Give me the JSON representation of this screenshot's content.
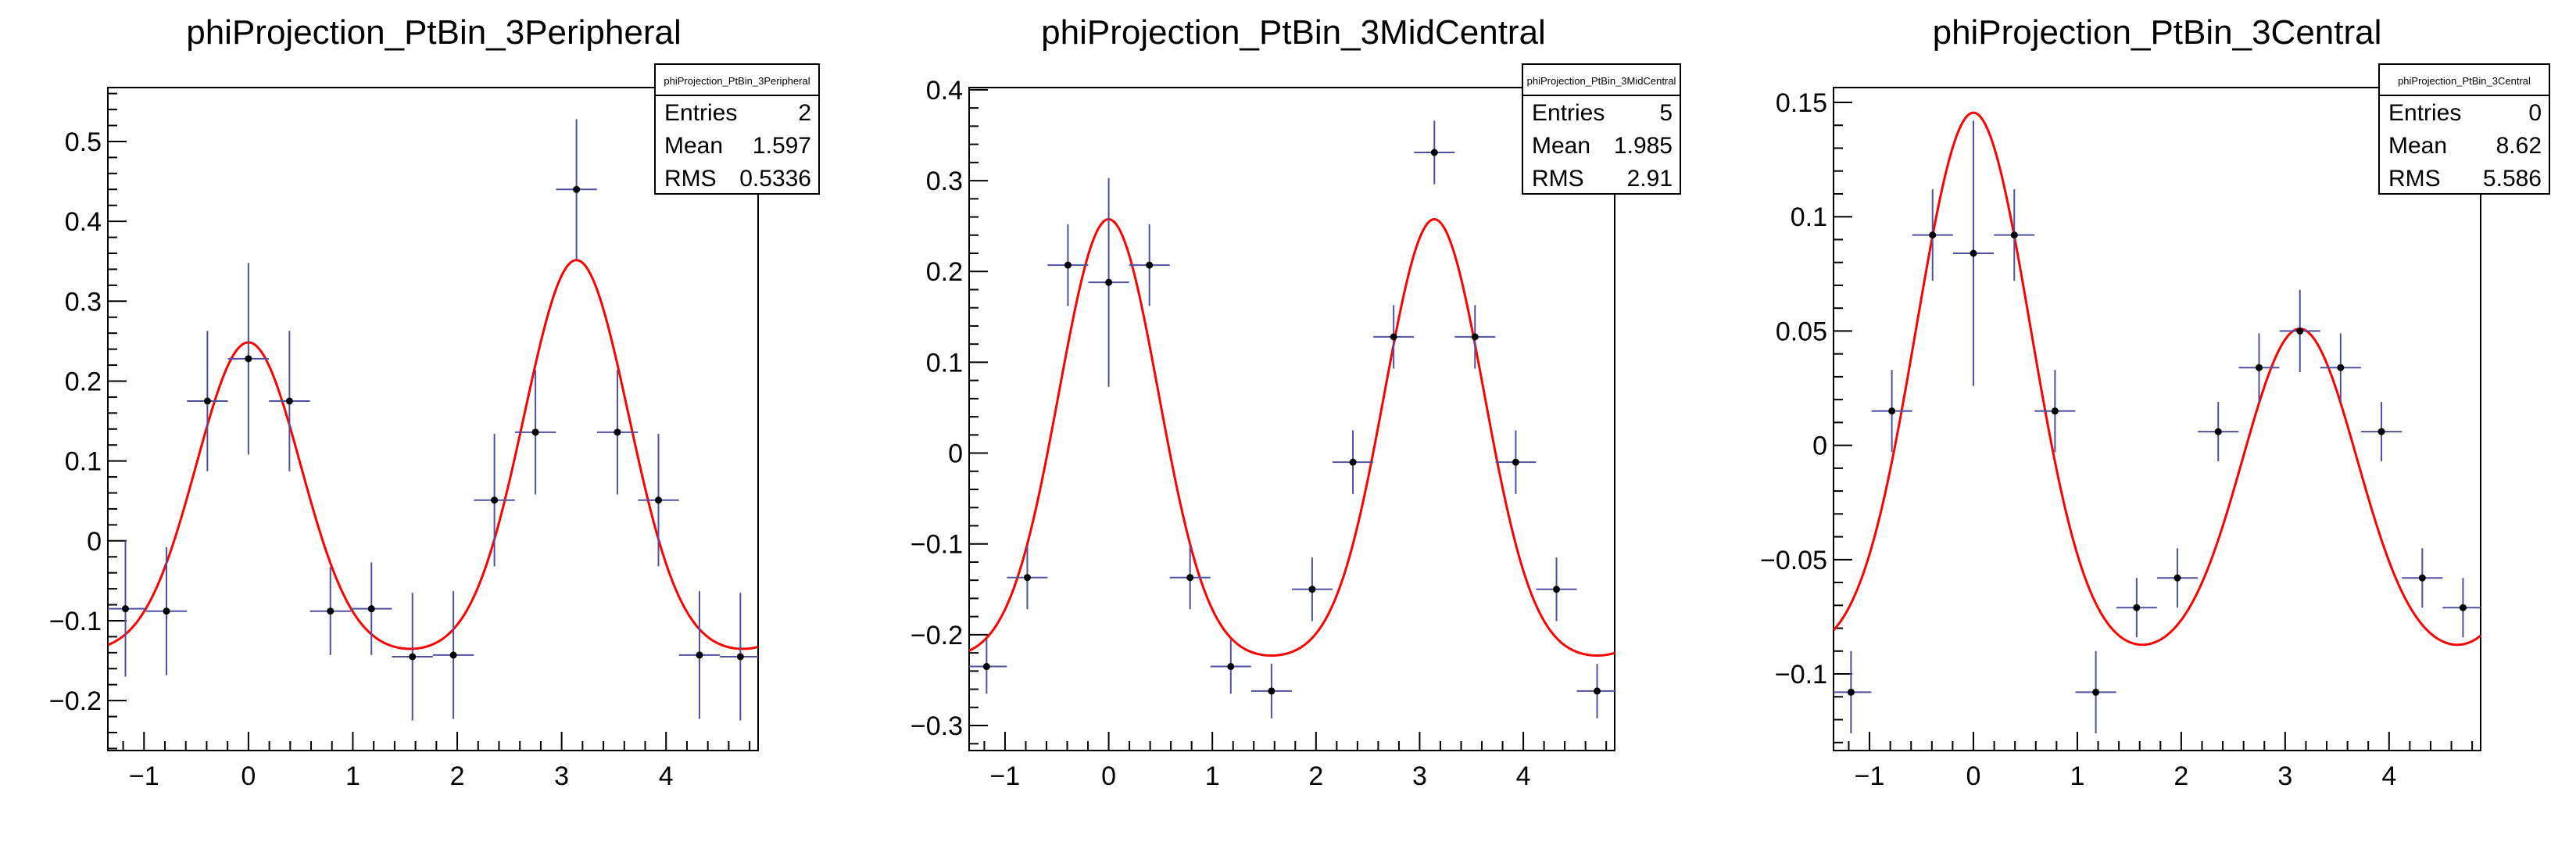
{
  "figure": {
    "colors": {
      "frame": "#000000",
      "fit": "#ff0000",
      "error_bar": "#5050a0",
      "marker": "#000000",
      "background": "#ffffff"
    }
  },
  "chart_data": [
    {
      "type": "scatter",
      "title": "phiProjection_PtBin_3Peripheral",
      "stats": {
        "name": "phiProjection_PtBin_3Peripheral",
        "rows": [
          {
            "label": "Entries",
            "value": "2"
          },
          {
            "label": "Mean",
            "value": "1.597"
          },
          {
            "label": "RMS",
            "value": "0.5336"
          }
        ]
      },
      "xlim": [
        -1.3464,
        4.8816
      ],
      "ylim": [
        -0.2625,
        0.5675
      ],
      "xticks": [
        -1,
        0,
        1,
        2,
        3,
        4
      ],
      "xtick_labels": [
        "−1",
        "0",
        "1",
        "2",
        "3",
        "4"
      ],
      "yticks": [
        -0.2,
        -0.1,
        0,
        0.1,
        0.2,
        0.3,
        0.4,
        0.5
      ],
      "ytick_labels": [
        "−0.2",
        "−0.1",
        "0",
        "0.1",
        "0.2",
        "0.3",
        "0.4",
        "0.5"
      ],
      "points": {
        "x": [
          -1.178,
          -0.785,
          -0.393,
          0.0,
          0.393,
          0.785,
          1.178,
          1.571,
          1.963,
          2.356,
          2.749,
          3.142,
          3.534,
          3.927,
          4.32,
          4.712
        ],
        "y": [
          -0.085,
          -0.088,
          0.175,
          0.228,
          0.175,
          -0.088,
          -0.085,
          -0.145,
          -0.143,
          0.051,
          0.136,
          0.44,
          0.136,
          0.051,
          -0.143,
          -0.145
        ],
        "yerr": [
          0.085,
          0.08,
          0.088,
          0.12,
          0.088,
          0.055,
          0.058,
          0.08,
          0.08,
          0.083,
          0.078,
          0.088,
          0.078,
          0.083,
          0.08,
          0.08
        ],
        "xerr": 0.196
      },
      "fit": {
        "baseline": -0.1415,
        "near_amp": 0.39,
        "away_amp": 0.493,
        "width": 0.5
      }
    },
    {
      "type": "scatter",
      "title": "phiProjection_PtBin_3MidCentral",
      "stats": {
        "name": "phiProjection_PtBin_3MidCentral",
        "rows": [
          {
            "label": "Entries",
            "value": "5"
          },
          {
            "label": "Mean",
            "value": "1.985"
          },
          {
            "label": "RMS",
            "value": "2.91"
          }
        ]
      },
      "xlim": [
        -1.3464,
        4.8816
      ],
      "ylim": [
        -0.3275,
        0.4025
      ],
      "xticks": [
        -1,
        0,
        1,
        2,
        3,
        4
      ],
      "xtick_labels": [
        "−1",
        "0",
        "1",
        "2",
        "3",
        "4"
      ],
      "yticks": [
        -0.3,
        -0.2,
        -0.1,
        0,
        0.1,
        0.2,
        0.3,
        0.4
      ],
      "ytick_labels": [
        "−0.3",
        "−0.2",
        "−0.1",
        "0",
        "0.1",
        "0.2",
        "0.3",
        "0.4"
      ],
      "points": {
        "x": [
          -1.178,
          -0.785,
          -0.393,
          0.0,
          0.393,
          0.785,
          1.178,
          1.571,
          1.963,
          2.356,
          2.749,
          3.142,
          3.534,
          3.927,
          4.32,
          4.712
        ],
        "y": [
          -0.235,
          -0.137,
          0.207,
          0.188,
          0.207,
          -0.137,
          -0.235,
          -0.262,
          -0.15,
          -0.01,
          0.128,
          0.331,
          0.128,
          -0.01,
          -0.15,
          -0.262
        ],
        "yerr": [
          0.03,
          0.035,
          0.045,
          0.115,
          0.045,
          0.035,
          0.03,
          0.03,
          0.035,
          0.035,
          0.035,
          0.035,
          0.035,
          0.035,
          0.035,
          0.03
        ],
        "xerr": 0.196
      },
      "fit": {
        "baseline": -0.2275,
        "near_amp": 0.485,
        "away_amp": 0.485,
        "width": 0.48
      }
    },
    {
      "type": "scatter",
      "title": "phiProjection_PtBin_3Central",
      "stats": {
        "name": "phiProjection_PtBin_3Central",
        "rows": [
          {
            "label": "Entries",
            "value": "0"
          },
          {
            "label": "Mean",
            "value": "8.62"
          },
          {
            "label": "RMS",
            "value": "5.586"
          }
        ]
      },
      "xlim": [
        -1.3464,
        4.8816
      ],
      "ylim": [
        -0.1335,
        0.1565
      ],
      "xticks": [
        -1,
        0,
        1,
        2,
        3,
        4
      ],
      "xtick_labels": [
        "−1",
        "0",
        "1",
        "2",
        "3",
        "4"
      ],
      "yticks": [
        -0.1,
        -0.05,
        0,
        0.05,
        0.1,
        0.15
      ],
      "ytick_labels": [
        "−0.1",
        "−0.05",
        "0",
        "0.05",
        "0.1",
        "0.15"
      ],
      "points": {
        "x": [
          -1.178,
          -0.785,
          -0.393,
          0.0,
          0.393,
          0.785,
          1.178,
          1.571,
          1.963,
          2.356,
          2.749,
          3.142,
          3.534,
          3.927,
          4.32,
          4.712
        ],
        "y": [
          -0.108,
          0.015,
          0.092,
          0.084,
          0.092,
          0.015,
          -0.108,
          -0.071,
          -0.058,
          0.006,
          0.034,
          0.05,
          0.034,
          0.006,
          -0.058,
          -0.071
        ],
        "yerr": [
          0.018,
          0.018,
          0.02,
          0.058,
          0.02,
          0.018,
          0.018,
          0.013,
          0.013,
          0.013,
          0.015,
          0.018,
          0.015,
          0.013,
          0.013,
          0.013
        ],
        "xerr": 0.196
      },
      "fit": {
        "baseline": -0.0935,
        "near_amp": 0.239,
        "away_amp": 0.1445,
        "width": 0.55
      }
    }
  ]
}
